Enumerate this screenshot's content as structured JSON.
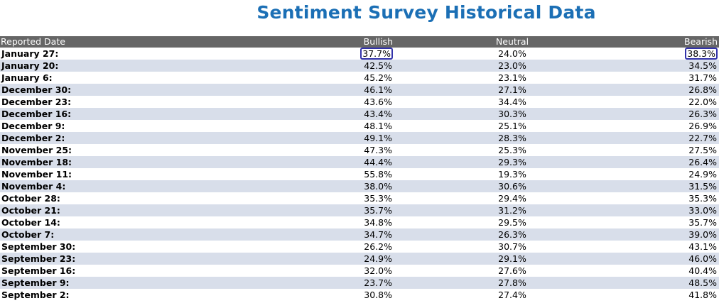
{
  "page": {
    "title": "Sentiment Survey Historical Data",
    "title_color": "#1b6fb5",
    "header_bg": "#666666",
    "stripe_color": "#d8deea",
    "highlight_color": "#3333aa"
  },
  "table": {
    "headers": {
      "date": "Reported Date",
      "bullish": "Bullish",
      "neutral": "Neutral",
      "bearish": "Bearish"
    },
    "highlighted_cells": [
      "rows.0.bullish",
      "rows.0.bearish"
    ]
  },
  "chart_data": {
    "type": "table",
    "title": "Sentiment Survey Historical Data",
    "columns": [
      "Reported Date",
      "Bullish",
      "Neutral",
      "Bearish"
    ],
    "rows": [
      {
        "date": "January 27:",
        "bullish": "37.7%",
        "neutral": "24.0%",
        "bearish": "38.3%"
      },
      {
        "date": "January 20:",
        "bullish": "42.5%",
        "neutral": "23.0%",
        "bearish": "34.5%"
      },
      {
        "date": "January 6:",
        "bullish": "45.2%",
        "neutral": "23.1%",
        "bearish": "31.7%"
      },
      {
        "date": "December 30:",
        "bullish": "46.1%",
        "neutral": "27.1%",
        "bearish": "26.8%"
      },
      {
        "date": "December 23:",
        "bullish": "43.6%",
        "neutral": "34.4%",
        "bearish": "22.0%"
      },
      {
        "date": "December 16:",
        "bullish": "43.4%",
        "neutral": "30.3%",
        "bearish": "26.3%"
      },
      {
        "date": "December 9:",
        "bullish": "48.1%",
        "neutral": "25.1%",
        "bearish": "26.9%"
      },
      {
        "date": "December 2:",
        "bullish": "49.1%",
        "neutral": "28.3%",
        "bearish": "22.7%"
      },
      {
        "date": "November 25:",
        "bullish": "47.3%",
        "neutral": "25.3%",
        "bearish": "27.5%"
      },
      {
        "date": "November 18:",
        "bullish": "44.4%",
        "neutral": "29.3%",
        "bearish": "26.4%"
      },
      {
        "date": "November 11:",
        "bullish": "55.8%",
        "neutral": "19.3%",
        "bearish": "24.9%"
      },
      {
        "date": "November 4:",
        "bullish": "38.0%",
        "neutral": "30.6%",
        "bearish": "31.5%"
      },
      {
        "date": "October 28:",
        "bullish": "35.3%",
        "neutral": "29.4%",
        "bearish": "35.3%"
      },
      {
        "date": "October 21:",
        "bullish": "35.7%",
        "neutral": "31.2%",
        "bearish": "33.0%"
      },
      {
        "date": "October 14:",
        "bullish": "34.8%",
        "neutral": "29.5%",
        "bearish": "35.7%"
      },
      {
        "date": "October 7:",
        "bullish": "34.7%",
        "neutral": "26.3%",
        "bearish": "39.0%"
      },
      {
        "date": "September 30:",
        "bullish": "26.2%",
        "neutral": "30.7%",
        "bearish": "43.1%"
      },
      {
        "date": "September 23:",
        "bullish": "24.9%",
        "neutral": "29.1%",
        "bearish": "46.0%"
      },
      {
        "date": "September 16:",
        "bullish": "32.0%",
        "neutral": "27.6%",
        "bearish": "40.4%"
      },
      {
        "date": "September 9:",
        "bullish": "23.7%",
        "neutral": "27.8%",
        "bearish": "48.5%"
      },
      {
        "date": "September 2:",
        "bullish": "30.8%",
        "neutral": "27.4%",
        "bearish": "41.8%"
      }
    ]
  }
}
